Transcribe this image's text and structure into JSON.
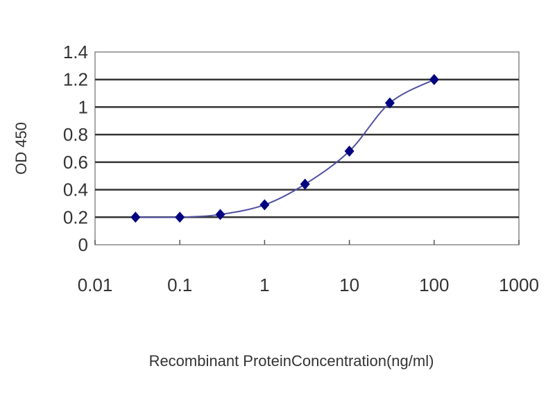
{
  "chart_data": {
    "type": "line",
    "title": "",
    "xlabel": "Recombinant ProteinConcentration(ng/ml)",
    "ylabel": "OD 450",
    "xscale": "log",
    "xlim": [
      0.01,
      1000
    ],
    "ylim": [
      0,
      1.4
    ],
    "xticks": [
      "0.01",
      "0.1",
      "1",
      "10",
      "100",
      "1000"
    ],
    "xtick_values": [
      0.01,
      0.1,
      1,
      10,
      100,
      1000
    ],
    "yticks": [
      "0",
      "0.2",
      "0.4",
      "0.6",
      "0.8",
      "1",
      "1.2",
      "1.4"
    ],
    "ytick_values": [
      0,
      0.2,
      0.4,
      0.6,
      0.8,
      1,
      1.2,
      1.4
    ],
    "grid": "horizontal",
    "series": [
      {
        "x": [
          0.03,
          0.1,
          0.3,
          1,
          3,
          10,
          30,
          100
        ],
        "y": [
          0.2,
          0.2,
          0.22,
          0.29,
          0.44,
          0.68,
          1.03,
          1.2
        ],
        "color": "#000080",
        "marker": "diamond"
      }
    ]
  }
}
